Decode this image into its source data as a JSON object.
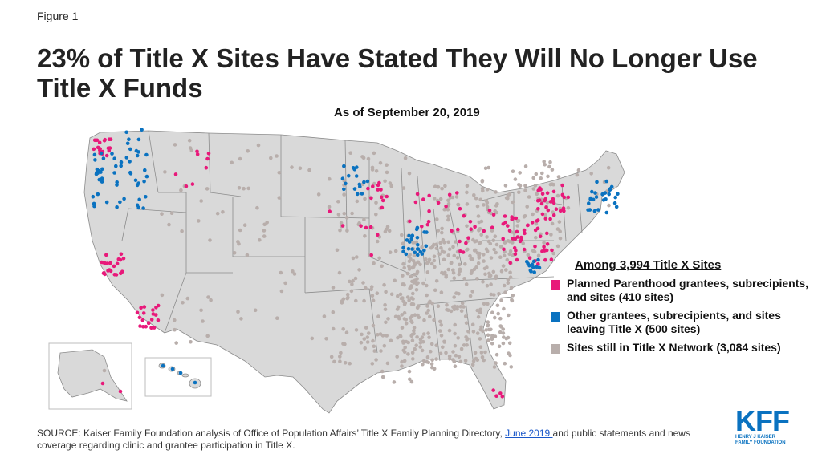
{
  "figure_label": "Figure 1",
  "title": "23% of Title X Sites Have Stated They Will No Longer Use Title X Funds",
  "subtitle": "As of September 20, 2019",
  "legend": {
    "title": "Among 3,994 Title X Sites",
    "items": [
      {
        "label": "Planned Parenthood grantees, subrecipients, and sites (410 sites)",
        "color": "#e8197a"
      },
      {
        "label": "Other grantees, subrecipients, and sites leaving Title X (500 sites)",
        "color": "#0a72c0"
      },
      {
        "label": "Sites still in Title X Network (3,084 sites)",
        "color": "#b8aeab"
      }
    ]
  },
  "colors": {
    "state_fill": "#d9d9d9",
    "state_border": "#8c8c8c",
    "pp": "#e8197a",
    "other": "#0a72c0",
    "still": "#b8aeab"
  },
  "source": {
    "prefix": "SOURCE: Kaiser Family Foundation analysis of Office of Population Affairs’ Title X Family Planning Directory, ",
    "link_text": "June 2019 ",
    "suffix": "and public statements and news coverage regarding clinic and grantee participation in Title X."
  },
  "logo": {
    "mark": "KFF",
    "line1": "HENRY J KAISER",
    "line2": "FAMILY FOUNDATION"
  }
}
